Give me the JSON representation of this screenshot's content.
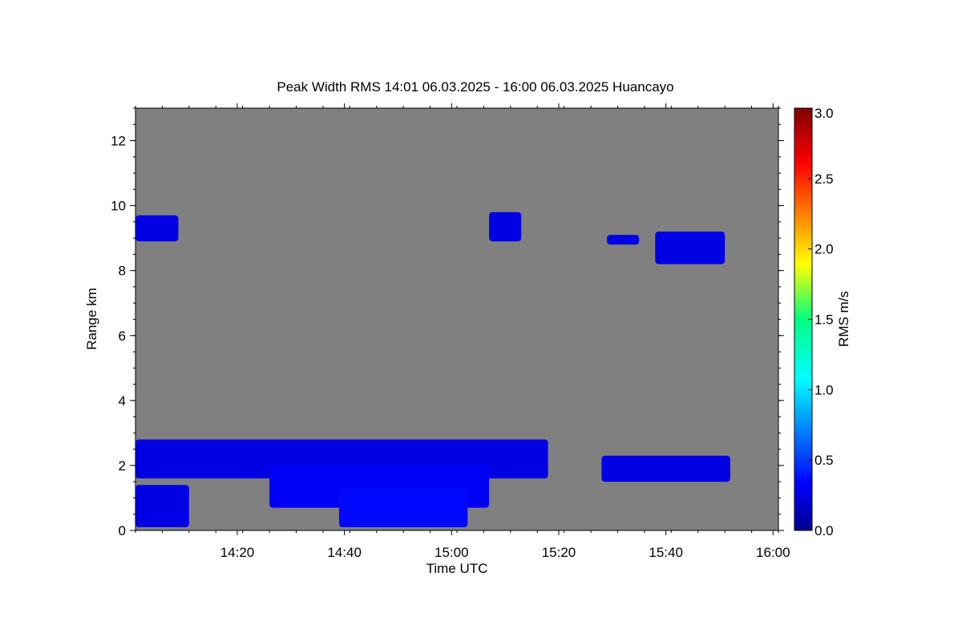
{
  "chart_data": {
    "type": "heatmap",
    "title": "Peak Width RMS   14:01 06.03.2025 - 16:00 06.03.2025 Huancayo",
    "xlabel": "Time UTC",
    "ylabel": "Range km",
    "x_ticks": [
      "14:20",
      "14:40",
      "15:00",
      "15:20",
      "15:40",
      "16:00"
    ],
    "y_ticks": [
      "0",
      "2",
      "4",
      "6",
      "8",
      "10",
      "12"
    ],
    "xlim_minutes_utc": [
      841,
      961
    ],
    "ylim_km": [
      0,
      13
    ],
    "background_color": "#808080",
    "colorbar": {
      "label": "RMS m/s",
      "range": [
        0.0,
        3.0
      ],
      "ticks": [
        "0.0",
        "0.5",
        "1.0",
        "1.5",
        "2.0",
        "2.5",
        "3.0"
      ],
      "colormap": "jet"
    },
    "regions": [
      {
        "t_start": 841,
        "t_end": 849,
        "r_low": 8.9,
        "r_high": 9.7,
        "rms": 0.3
      },
      {
        "t_start": 841,
        "t_end": 918,
        "r_low": 1.6,
        "r_high": 2.8,
        "rms": 0.3
      },
      {
        "t_start": 841,
        "t_end": 851,
        "r_low": 0.1,
        "r_high": 1.4,
        "rms": 0.3
      },
      {
        "t_start": 866,
        "t_end": 907,
        "r_low": 0.7,
        "r_high": 2.0,
        "rms": 0.35
      },
      {
        "t_start": 879,
        "t_end": 903,
        "r_low": 0.1,
        "r_high": 1.3,
        "rms": 0.4
      },
      {
        "t_start": 928,
        "t_end": 952,
        "r_low": 1.5,
        "r_high": 2.3,
        "rms": 0.3
      },
      {
        "t_start": 907,
        "t_end": 913,
        "r_low": 8.9,
        "r_high": 9.8,
        "rms": 0.3
      },
      {
        "t_start": 929,
        "t_end": 935,
        "r_low": 8.8,
        "r_high": 9.1,
        "rms": 0.3
      },
      {
        "t_start": 938,
        "t_end": 951,
        "r_low": 8.2,
        "r_high": 9.2,
        "rms": 0.3
      }
    ]
  }
}
